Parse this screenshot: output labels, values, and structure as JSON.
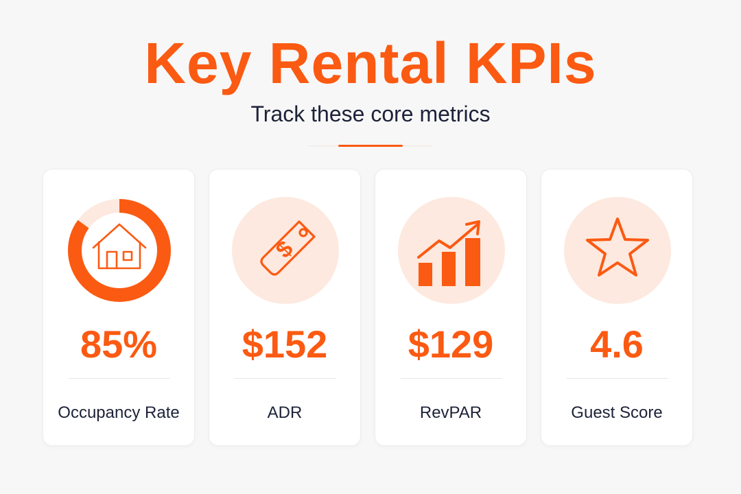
{
  "header": {
    "title": "Key Rental KPIs",
    "subtitle": "Track these core metrics"
  },
  "colors": {
    "accent": "#fb5a12",
    "accent_soft": "#fde9df",
    "text_dark": "#1c2238"
  },
  "kpis": [
    {
      "value": "85%",
      "label": "Occupancy Rate",
      "icon": "house-icon",
      "fraction": 0.85
    },
    {
      "value": "$152",
      "label": "ADR",
      "icon": "price-tag-icon"
    },
    {
      "value": "$129",
      "label": "RevPAR",
      "icon": "growth-chart-icon"
    },
    {
      "value": "4.6",
      "label": "Guest Score",
      "icon": "star-icon"
    }
  ]
}
